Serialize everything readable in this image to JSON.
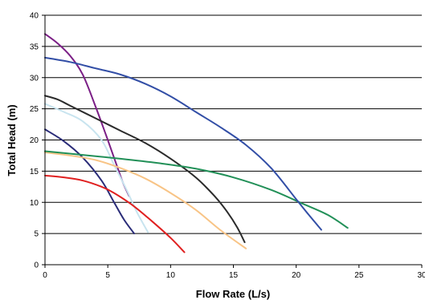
{
  "chart_data": {
    "type": "line",
    "title": "",
    "xlabel": "Flow Rate (L/s)",
    "ylabel": "Total Head (m)",
    "xlim": [
      0,
      30
    ],
    "ylim": [
      0,
      40
    ],
    "x_ticks": [
      0,
      5,
      10,
      15,
      20,
      25,
      30
    ],
    "y_ticks": [
      0,
      5,
      10,
      15,
      20,
      25,
      30,
      35,
      40
    ],
    "grid": "horizontal",
    "legend": "none",
    "series": [
      {
        "color": "#7b1f86",
        "points": [
          [
            0,
            37
          ],
          [
            1,
            35.5
          ],
          [
            2,
            33.5
          ],
          [
            3,
            30.5
          ],
          [
            4,
            25.5
          ],
          [
            5,
            20
          ],
          [
            5.7,
            16
          ],
          [
            6.2,
            13.2
          ],
          [
            6.7,
            11
          ]
        ]
      },
      {
        "color": "#c8e4ef",
        "points": [
          [
            0,
            25.8
          ],
          [
            1.5,
            24.5
          ],
          [
            3,
            23
          ],
          [
            4.5,
            20
          ],
          [
            5.5,
            16
          ],
          [
            6.5,
            12
          ],
          [
            7.3,
            8.5
          ],
          [
            8.2,
            5.2
          ]
        ]
      },
      {
        "color": "#2a2c78",
        "points": [
          [
            0,
            21.7
          ],
          [
            1.5,
            19.8
          ],
          [
            3,
            17.2
          ],
          [
            4.5,
            13.5
          ],
          [
            5.5,
            10
          ],
          [
            6.3,
            7.2
          ],
          [
            7.1,
            5
          ]
        ]
      },
      {
        "color": "#e02020",
        "points": [
          [
            0,
            14.3
          ],
          [
            1.5,
            14
          ],
          [
            3,
            13.5
          ],
          [
            4.5,
            12.5
          ],
          [
            5.5,
            11.5
          ],
          [
            7,
            9.5
          ],
          [
            8.5,
            7
          ],
          [
            10,
            4.3
          ],
          [
            11.1,
            2
          ]
        ]
      },
      {
        "color": "#f8c486",
        "points": [
          [
            0,
            18
          ],
          [
            2,
            17.5
          ],
          [
            4,
            16.8
          ],
          [
            6,
            15.5
          ],
          [
            8,
            13.8
          ],
          [
            10,
            11.5
          ],
          [
            12,
            8.8
          ],
          [
            14,
            5.5
          ],
          [
            16,
            2.6
          ]
        ]
      },
      {
        "color": "#2b2b2b",
        "points": [
          [
            0,
            27.1
          ],
          [
            1,
            26.5
          ],
          [
            2,
            25.5
          ],
          [
            4,
            23.5
          ],
          [
            6,
            21.5
          ],
          [
            8,
            19.5
          ],
          [
            10,
            17
          ],
          [
            12,
            14
          ],
          [
            13.5,
            11
          ],
          [
            14.5,
            8.5
          ],
          [
            15.3,
            6
          ],
          [
            15.9,
            3.6
          ]
        ]
      },
      {
        "color": "#229058",
        "points": [
          [
            0,
            18.2
          ],
          [
            3,
            17.6
          ],
          [
            6,
            17
          ],
          [
            9,
            16.3
          ],
          [
            12,
            15.4
          ],
          [
            15,
            14
          ],
          [
            18,
            12
          ],
          [
            20.5,
            9.8
          ],
          [
            22.5,
            8
          ],
          [
            24.1,
            5.9
          ]
        ]
      },
      {
        "color": "#324ea6",
        "points": [
          [
            0,
            33.2
          ],
          [
            2,
            32.5
          ],
          [
            4,
            31.5
          ],
          [
            6,
            30.5
          ],
          [
            8,
            29
          ],
          [
            10,
            27
          ],
          [
            12,
            24.5
          ],
          [
            14,
            22
          ],
          [
            16,
            19.2
          ],
          [
            18,
            15.5
          ],
          [
            20,
            10.5
          ],
          [
            21,
            8
          ],
          [
            22,
            5.6
          ]
        ]
      }
    ]
  }
}
